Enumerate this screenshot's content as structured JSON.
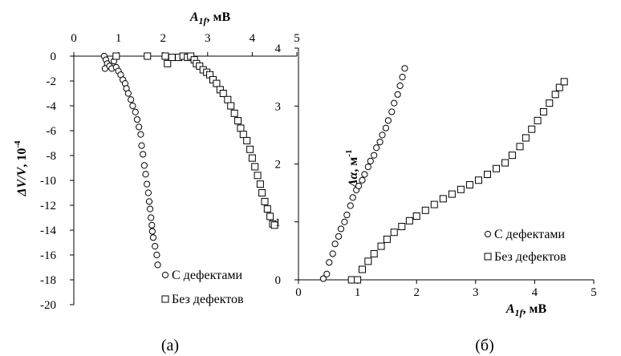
{
  "chart_data": [
    {
      "type": "scatter",
      "panel_label": "(а)",
      "xlabel_main": "A",
      "xlabel_sub": "1f",
      "xlabel_unit": ", мВ",
      "ylabel_main": "ΔV/V",
      "ylabel_unit": ", 10",
      "ylabel_exp": "-4",
      "x_axis_position": "top",
      "xlim": [
        0,
        5
      ],
      "ylim": [
        -20,
        0
      ],
      "xticks": [
        0,
        1,
        2,
        3,
        4,
        5
      ],
      "yticks": [
        0,
        -2,
        -4,
        -6,
        -8,
        -10,
        -12,
        -14,
        -16,
        -18,
        -20
      ],
      "legend_position": "bottom-right",
      "series": [
        {
          "name": "С дефектами",
          "marker": "circle",
          "points": [
            [
              0.68,
              0
            ],
            [
              0.72,
              -0.3
            ],
            [
              0.75,
              -0.6
            ],
            [
              0.7,
              -1.0
            ],
            [
              0.8,
              -0.8
            ],
            [
              0.85,
              -1.0
            ],
            [
              0.9,
              -0.4
            ],
            [
              0.95,
              -0.9
            ],
            [
              1.0,
              -1.2
            ],
            [
              1.05,
              -1.5
            ],
            [
              1.1,
              -1.9
            ],
            [
              1.15,
              -2.2
            ],
            [
              1.18,
              -2.6
            ],
            [
              1.22,
              -3.0
            ],
            [
              1.28,
              -3.5
            ],
            [
              1.32,
              -4.0
            ],
            [
              1.38,
              -4.5
            ],
            [
              1.42,
              -5.1
            ],
            [
              1.46,
              -5.7
            ],
            [
              1.5,
              -6.3
            ],
            [
              1.52,
              -7.2
            ],
            [
              1.55,
              -7.9
            ],
            [
              1.58,
              -8.8
            ],
            [
              1.61,
              -9.5
            ],
            [
              1.64,
              -10.3
            ],
            [
              1.67,
              -11.0
            ],
            [
              1.69,
              -11.7
            ],
            [
              1.71,
              -12.3
            ],
            [
              1.73,
              -13.0
            ],
            [
              1.75,
              -13.6
            ],
            [
              1.76,
              -14.1
            ],
            [
              1.78,
              -14.6
            ],
            [
              1.82,
              -15.3
            ],
            [
              1.86,
              -16.0
            ],
            [
              1.88,
              -16.8
            ]
          ]
        },
        {
          "name": "Без дефектов",
          "marker": "square",
          "points": [
            [
              0.95,
              0
            ],
            [
              1.65,
              0
            ],
            [
              2.05,
              0
            ],
            [
              2.1,
              -0.6
            ],
            [
              2.2,
              -0.1
            ],
            [
              2.35,
              -0.1
            ],
            [
              2.45,
              0
            ],
            [
              2.55,
              -0.1
            ],
            [
              2.62,
              0
            ],
            [
              2.7,
              -0.3
            ],
            [
              2.75,
              -0.6
            ],
            [
              2.82,
              -0.8
            ],
            [
              2.9,
              -1.1
            ],
            [
              2.98,
              -1.3
            ],
            [
              3.05,
              -1.5
            ],
            [
              3.12,
              -1.9
            ],
            [
              3.2,
              -2.2
            ],
            [
              3.28,
              -2.7
            ],
            [
              3.35,
              -3.0
            ],
            [
              3.45,
              -3.5
            ],
            [
              3.52,
              -4.0
            ],
            [
              3.6,
              -4.6
            ],
            [
              3.68,
              -5.2
            ],
            [
              3.74,
              -5.8
            ],
            [
              3.8,
              -6.3
            ],
            [
              3.88,
              -6.8
            ],
            [
              3.95,
              -7.5
            ],
            [
              4.0,
              -8.2
            ],
            [
              4.06,
              -8.9
            ],
            [
              4.12,
              -9.6
            ],
            [
              4.18,
              -10.3
            ],
            [
              4.22,
              -11.0
            ],
            [
              4.28,
              -11.7
            ],
            [
              4.34,
              -12.3
            ],
            [
              4.4,
              -12.9
            ],
            [
              4.46,
              -13.5
            ],
            [
              4.5,
              -13.6
            ]
          ]
        }
      ]
    },
    {
      "type": "scatter",
      "panel_label": "(б)",
      "xlabel_main": "A",
      "xlabel_sub": "1f",
      "xlabel_unit": ", мВ",
      "ylabel_main": "Δα",
      "ylabel_unit": ", м",
      "ylabel_exp": "-1",
      "x_axis_position": "bottom",
      "xlim": [
        0,
        5
      ],
      "ylim": [
        0,
        4
      ],
      "xticks": [
        0,
        1,
        2,
        3,
        4,
        5
      ],
      "yticks": [
        0,
        1,
        2,
        3,
        4
      ],
      "legend_position": "bottom-right",
      "series": [
        {
          "name": "С дефектами",
          "marker": "circle",
          "points": [
            [
              0.42,
              0.02
            ],
            [
              0.48,
              0.1
            ],
            [
              0.52,
              0.3
            ],
            [
              0.58,
              0.45
            ],
            [
              0.62,
              0.62
            ],
            [
              0.68,
              0.75
            ],
            [
              0.72,
              0.88
            ],
            [
              0.78,
              1.0
            ],
            [
              0.82,
              1.12
            ],
            [
              0.88,
              1.28
            ],
            [
              0.92,
              1.42
            ],
            [
              0.98,
              1.55
            ],
            [
              1.02,
              1.62
            ],
            [
              1.08,
              1.72
            ],
            [
              1.12,
              1.82
            ],
            [
              1.18,
              1.95
            ],
            [
              1.22,
              2.05
            ],
            [
              1.28,
              2.15
            ],
            [
              1.32,
              2.28
            ],
            [
              1.38,
              2.38
            ],
            [
              1.42,
              2.5
            ],
            [
              1.48,
              2.62
            ],
            [
              1.52,
              2.75
            ],
            [
              1.58,
              2.9
            ],
            [
              1.62,
              3.05
            ],
            [
              1.68,
              3.2
            ],
            [
              1.72,
              3.35
            ],
            [
              1.76,
              3.5
            ],
            [
              1.8,
              3.65
            ]
          ]
        },
        {
          "name": "Без дефектов",
          "marker": "square",
          "points": [
            [
              0.9,
              0
            ],
            [
              1.0,
              0
            ],
            [
              1.08,
              0.18
            ],
            [
              1.18,
              0.32
            ],
            [
              1.28,
              0.45
            ],
            [
              1.4,
              0.58
            ],
            [
              1.5,
              0.7
            ],
            [
              1.62,
              0.82
            ],
            [
              1.75,
              0.92
            ],
            [
              1.88,
              1.02
            ],
            [
              2.0,
              1.1
            ],
            [
              2.15,
              1.2
            ],
            [
              2.3,
              1.3
            ],
            [
              2.45,
              1.4
            ],
            [
              2.6,
              1.48
            ],
            [
              2.75,
              1.56
            ],
            [
              2.9,
              1.64
            ],
            [
              3.05,
              1.72
            ],
            [
              3.2,
              1.82
            ],
            [
              3.35,
              1.92
            ],
            [
              3.5,
              2.02
            ],
            [
              3.62,
              2.15
            ],
            [
              3.75,
              2.3
            ],
            [
              3.85,
              2.45
            ],
            [
              3.95,
              2.6
            ],
            [
              4.05,
              2.75
            ],
            [
              4.15,
              2.9
            ],
            [
              4.25,
              3.05
            ],
            [
              4.35,
              3.2
            ],
            [
              4.42,
              3.32
            ],
            [
              4.5,
              3.42
            ]
          ]
        }
      ]
    }
  ]
}
